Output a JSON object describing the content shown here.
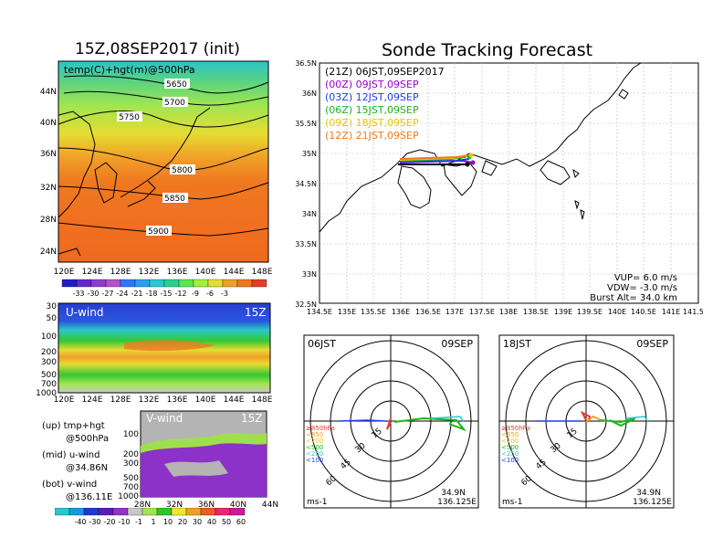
{
  "left": {
    "title": "15Z,08SEP2017 (init)",
    "map_label": "temp(C)+hgt(m)@500hPa",
    "contours": [
      "5650",
      "5700",
      "5750",
      "5800",
      "5850",
      "5900"
    ],
    "lat_ticks": [
      "44N",
      "40N",
      "36N",
      "32N",
      "28N",
      "24N"
    ],
    "lon_ticks": [
      "120E",
      "124E",
      "128E",
      "132E",
      "136E",
      "140E",
      "144E",
      "148E"
    ],
    "temp_colorbar": [
      "-33",
      "-30",
      "-27",
      "-24",
      "-21",
      "-18",
      "-15",
      "-12",
      "-9",
      "-6",
      "-3"
    ],
    "temp_colors": [
      "#1e1ec8",
      "#6428d2",
      "#8c3cd2",
      "#b450c8",
      "#2878ff",
      "#28a0f0",
      "#28c8d2",
      "#28d28c",
      "#5ae650",
      "#a0f03c",
      "#e6dc32",
      "#f0a028",
      "#f07820",
      "#e63c28"
    ],
    "uwind_label": "U-wind",
    "uwind_time": "15Z",
    "pres_ticks": [
      "30",
      "50",
      "100",
      "200",
      "300",
      "500",
      "700",
      "1000"
    ],
    "vwind_label": "V-wind",
    "vwind_time": "15Z",
    "vlat_ticks": [
      "28N",
      "32N",
      "36N",
      "40N",
      "44N"
    ],
    "legend_lines": [
      "(up) tmp+hgt",
      "@500hPa",
      "(mid) u-wind",
      "@34.86N",
      "(bot) v-wind",
      "@136.11E"
    ],
    "wind_colorbar": [
      "-40",
      "-30",
      "-20",
      "-10",
      "-1",
      "1",
      "10",
      "20",
      "30",
      "40",
      "50",
      "60"
    ],
    "wind_colors": [
      "#28c8d2",
      "#1e96e6",
      "#1e3cc8",
      "#5a1eb4",
      "#9632c8",
      "#c8c8c8",
      "#a0e650",
      "#28c828",
      "#f0e632",
      "#f0a028",
      "#f05a28",
      "#e6286e",
      "#c81e96"
    ]
  },
  "main": {
    "title": "Sonde Tracking Forecast",
    "lat_ticks": [
      "36.5N",
      "36N",
      "35.5N",
      "35N",
      "34.5N",
      "34N",
      "33.5N",
      "33N",
      "32.5N"
    ],
    "lon_ticks": [
      "134.5E",
      "135E",
      "135.5E",
      "136E",
      "136.5E",
      "137E",
      "137.5E",
      "138E",
      "138.5E",
      "139E",
      "139.5E",
      "140E",
      "140.5E",
      "141E",
      "141.5E"
    ],
    "tracks": [
      {
        "label": "(21Z)  06JST,09SEP2017",
        "color": "#000000"
      },
      {
        "label": "(00Z)  09JST,09SEP",
        "color": "#9b00d0"
      },
      {
        "label": "(03Z)  12JST,09SEP",
        "color": "#1e3cf0"
      },
      {
        "label": "(06Z)  15JST,09SEP",
        "color": "#1eb41e"
      },
      {
        "label": "(09Z)  18JST,09SEP",
        "color": "#e6c800"
      },
      {
        "label": "(12Z)  21JST,09SEP",
        "color": "#f0781e"
      }
    ],
    "params": [
      "VUP=  6.0 m/s",
      "VDW= -3.0 m/s",
      "Burst Alt= 34.0 km"
    ]
  },
  "hodographs": [
    {
      "time": "06JST",
      "date": "09SEP",
      "lat": "34.9N",
      "lon": "136.125E",
      "units": "ms-1"
    },
    {
      "time": "18JST",
      "date": "09SEP",
      "lat": "34.9N",
      "lon": "136.125E",
      "units": "ms-1"
    }
  ],
  "hodo_rings": [
    "15",
    "30",
    "45",
    "60"
  ],
  "hodo_levels": [
    {
      "label": "≥850hPa",
      "color": "#e63c28"
    },
    {
      "label": "<850",
      "color": "#f0a028"
    },
    {
      "label": "<700",
      "color": "#e6c800"
    },
    {
      "label": "<500",
      "color": "#1eb41e"
    },
    {
      "label": "<250",
      "color": "#28c8d2"
    },
    {
      "label": "<100",
      "color": "#1e3cf0"
    }
  ]
}
